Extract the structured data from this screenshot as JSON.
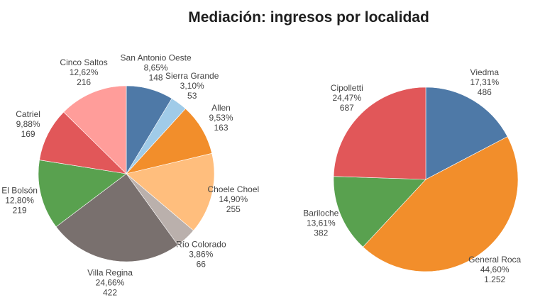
{
  "title": "Mediación: ingresos por localidad",
  "colors": {
    "background": "#ffffff",
    "title_text": "#1e1e1e",
    "label_text": "#444444"
  },
  "chart_data": [
    {
      "type": "pie",
      "name": "pie-ingresos-izquierda",
      "legend": "none",
      "label_format": "name, percent, count",
      "start_angle": "12-oclock",
      "direction": "clockwise",
      "slices": [
        {
          "label": "San Antonio Oeste",
          "pct": 8.65,
          "pct_label": "8,65%",
          "count": 148,
          "count_label": "148",
          "color": "#4e79a7"
        },
        {
          "label": "Sierra Grande",
          "pct": 3.1,
          "pct_label": "3,10%",
          "count": 53,
          "count_label": "53",
          "color": "#a0cbe8"
        },
        {
          "label": "Allen",
          "pct": 9.53,
          "pct_label": "9,53%",
          "count": 163,
          "count_label": "163",
          "color": "#f28e2b"
        },
        {
          "label": "Choele Choel",
          "pct": 14.9,
          "pct_label": "14,90%",
          "count": 255,
          "count_label": "255",
          "color": "#ffbe7d"
        },
        {
          "label": "Río Colorado",
          "pct": 3.86,
          "pct_label": "3,86%",
          "count": 66,
          "count_label": "66",
          "color": "#bab0ac"
        },
        {
          "label": "Villa Regina",
          "pct": 24.66,
          "pct_label": "24,66%",
          "count": 422,
          "count_label": "422",
          "color": "#79706e"
        },
        {
          "label": "El Bolsón",
          "pct": 12.8,
          "pct_label": "12,80%",
          "count": 219,
          "count_label": "219",
          "color": "#59a14f"
        },
        {
          "label": "Catriel",
          "pct": 9.88,
          "pct_label": "9,88%",
          "count": 169,
          "count_label": "169",
          "color": "#e15759"
        },
        {
          "label": "Cinco Saltos",
          "pct": 12.62,
          "pct_label": "12,62%",
          "count": 216,
          "count_label": "216",
          "color": "#ff9d9a"
        }
      ]
    },
    {
      "type": "pie",
      "name": "pie-ingresos-derecha",
      "legend": "none",
      "label_format": "name, percent, count",
      "start_angle": "12-oclock",
      "direction": "clockwise",
      "slices": [
        {
          "label": "Viedma",
          "pct": 17.31,
          "pct_label": "17,31%",
          "count": 486,
          "count_label": "486",
          "color": "#4e79a7"
        },
        {
          "label": "General Roca",
          "pct": 44.6,
          "pct_label": "44,60%",
          "count": 1252,
          "count_label": "1.252",
          "color": "#f28e2b"
        },
        {
          "label": "Bariloche",
          "pct": 13.61,
          "pct_label": "13,61%",
          "count": 382,
          "count_label": "382",
          "color": "#59a14f"
        },
        {
          "label": "Cipolletti",
          "pct": 24.47,
          "pct_label": "24,47%",
          "count": 687,
          "count_label": "687",
          "color": "#e15759"
        }
      ]
    }
  ]
}
